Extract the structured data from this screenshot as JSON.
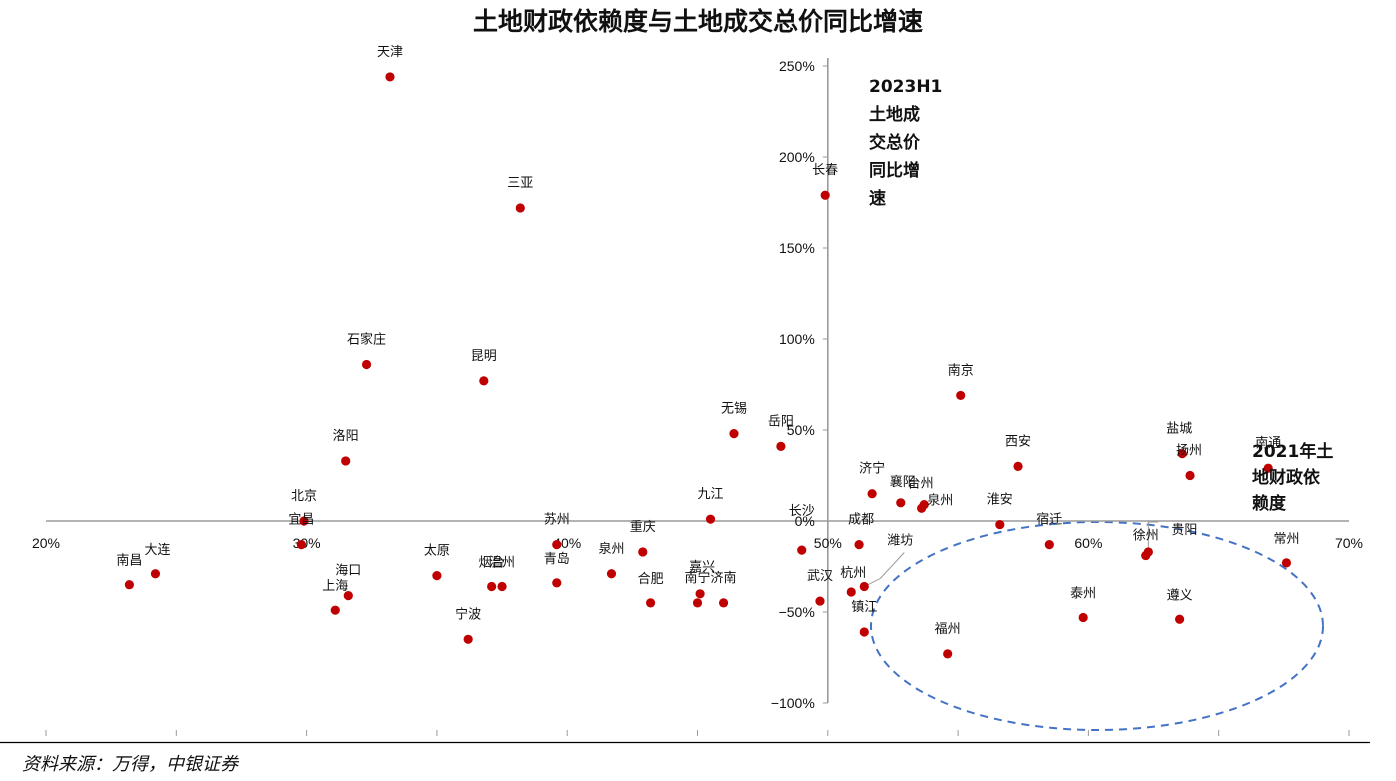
{
  "chart_data": {
    "type": "scatter",
    "title": "土地财政依赖度与土地成交总价同比增速",
    "xlabel_lines": [
      "2021年土",
      "地财政依",
      "赖度"
    ],
    "ylabel_lines": [
      "2023H1",
      "土地成",
      "交总价",
      "同比增",
      "速"
    ],
    "x_unit": "%",
    "y_unit": "%",
    "xlim": [
      20,
      70
    ],
    "ylim": [
      -100,
      250
    ],
    "x_ticks": [
      20,
      30,
      40,
      50,
      60,
      70
    ],
    "y_ticks": [
      250,
      200,
      150,
      100,
      50,
      0,
      -50,
      -100
    ],
    "x_tick_labels": [
      "20%",
      "30%",
      "40%",
      "50%",
      "60%",
      "70%"
    ],
    "y_tick_labels": [
      "250%",
      "200%",
      "150%",
      "100%",
      "50%",
      "0%",
      "−50%",
      "−100%"
    ],
    "y_axis_crosses_at_x": 50,
    "marker_color": "#c00000",
    "highlight_ellipse_color": "#4472c4",
    "source": "资料来源：万得，中银证券",
    "points": [
      {
        "name": "天津",
        "x": 33.2,
        "y": 244
      },
      {
        "name": "三亚",
        "x": 38.2,
        "y": 172
      },
      {
        "name": "长春",
        "x": 49.9,
        "y": 179
      },
      {
        "name": "石家庄",
        "x": 32.3,
        "y": 86
      },
      {
        "name": "昆明",
        "x": 36.8,
        "y": 77
      },
      {
        "name": "南京",
        "x": 55.1,
        "y": 69
      },
      {
        "name": "无锡",
        "x": 46.4,
        "y": 48
      },
      {
        "name": "岳阳",
        "x": 48.2,
        "y": 41
      },
      {
        "name": "洛阳",
        "x": 31.5,
        "y": 33
      },
      {
        "name": "西安",
        "x": 57.3,
        "y": 30
      },
      {
        "name": "盐城",
        "x": 63.6,
        "y": 37
      },
      {
        "name": "扬州",
        "x": 63.9,
        "y": 25
      },
      {
        "name": "南通",
        "x": 66.9,
        "y": 29
      },
      {
        "name": "济宁",
        "x": 51.7,
        "y": 15
      },
      {
        "name": "襄阳",
        "x": 52.8,
        "y": 10
      },
      {
        "name": "泉州",
        "x": 53.7,
        "y": 9
      },
      {
        "name": "台州",
        "x": 53.6,
        "y": 7
      },
      {
        "name": "淮安",
        "x": 56.6,
        "y": -2
      },
      {
        "name": "北京",
        "x": 29.9,
        "y": 0
      },
      {
        "name": "九江",
        "x": 45.5,
        "y": 1
      },
      {
        "name": "宿迁",
        "x": 58.5,
        "y": -13
      },
      {
        "name": "贵阳",
        "x": 62.3,
        "y": -17
      },
      {
        "name": "徐州",
        "x": 62.2,
        "y": -19
      },
      {
        "name": "成都",
        "x": 51.2,
        "y": -13
      },
      {
        "name": "宜昌",
        "x": 29.8,
        "y": -13
      },
      {
        "name": "苏州",
        "x": 39.6,
        "y": -13
      },
      {
        "name": "长沙",
        "x": 49.0,
        "y": -16
      },
      {
        "name": "重庆",
        "x": 42.9,
        "y": -17
      },
      {
        "name": "常州",
        "x": 67.6,
        "y": -23
      },
      {
        "name": "大连",
        "x": 24.2,
        "y": -29
      },
      {
        "name": "南昌",
        "x": 23.2,
        "y": -35
      },
      {
        "name": "泉州",
        "x": 41.7,
        "y": -29
      },
      {
        "name": "太原",
        "x": 35.0,
        "y": -30
      },
      {
        "name": "烟台",
        "x": 37.1,
        "y": -36
      },
      {
        "name": "温州",
        "x": 37.5,
        "y": -36
      },
      {
        "name": "青岛",
        "x": 39.6,
        "y": -34
      },
      {
        "name": "海口",
        "x": 31.6,
        "y": -41
      },
      {
        "name": "上海",
        "x": 31.1,
        "y": -49
      },
      {
        "name": "宁波",
        "x": 36.2,
        "y": -65
      },
      {
        "name": "合肥",
        "x": 43.2,
        "y": -45
      },
      {
        "name": "嘉兴",
        "x": 45.1,
        "y": -40
      },
      {
        "name": "南宁",
        "x": 45.0,
        "y": -45
      },
      {
        "name": "济南",
        "x": 46.0,
        "y": -45
      },
      {
        "name": "潍坊",
        "x": 51.4,
        "y": -36
      },
      {
        "name": "杭州",
        "x": 50.9,
        "y": -39
      },
      {
        "name": "武汉",
        "x": 49.7,
        "y": -44
      },
      {
        "name": "镇江",
        "x": 51.4,
        "y": -61
      },
      {
        "name": "福州",
        "x": 54.6,
        "y": -73
      },
      {
        "name": "泰州",
        "x": 59.8,
        "y": -53
      },
      {
        "name": "遵义",
        "x": 63.5,
        "y": -54
      }
    ]
  }
}
